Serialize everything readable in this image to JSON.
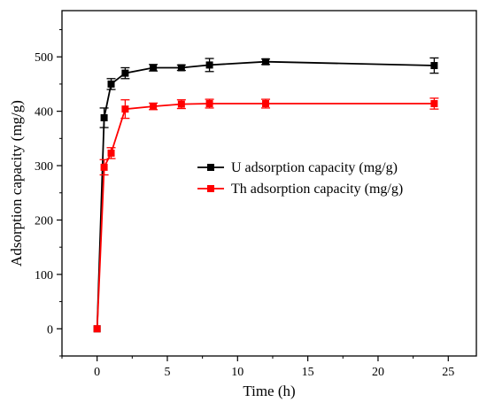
{
  "chart_data": {
    "type": "line",
    "xlabel": "Time (h)",
    "ylabel": "Adsorption capacity (mg/g)",
    "xlim": [
      -2.5,
      27
    ],
    "ylim": [
      -50,
      585
    ],
    "xticks": [
      "0",
      "5",
      "10",
      "15",
      "20",
      "25"
    ],
    "yticks": [
      "0",
      "100",
      "200",
      "300",
      "400",
      "500"
    ],
    "legend_position": "center-right",
    "series": [
      {
        "name": "U adsorption capacity (mg/g)",
        "color": "#000000",
        "marker": "square",
        "x": [
          0,
          0.5,
          1,
          2,
          4,
          6,
          8,
          12,
          24
        ],
        "y": [
          0,
          388,
          450,
          470,
          480,
          480,
          485,
          491,
          484
        ],
        "err": [
          0,
          18,
          10,
          10,
          6,
          5,
          12,
          5,
          14
        ]
      },
      {
        "name": "Th adsorption capacity (mg/g)",
        "color": "#ff0000",
        "marker": "square",
        "x": [
          0,
          0.5,
          1,
          2,
          4,
          6,
          8,
          12,
          24
        ],
        "y": [
          0,
          297,
          323,
          404,
          409,
          413,
          414,
          414,
          414
        ],
        "err": [
          0,
          14,
          10,
          17,
          6,
          8,
          8,
          8,
          10
        ]
      }
    ]
  }
}
